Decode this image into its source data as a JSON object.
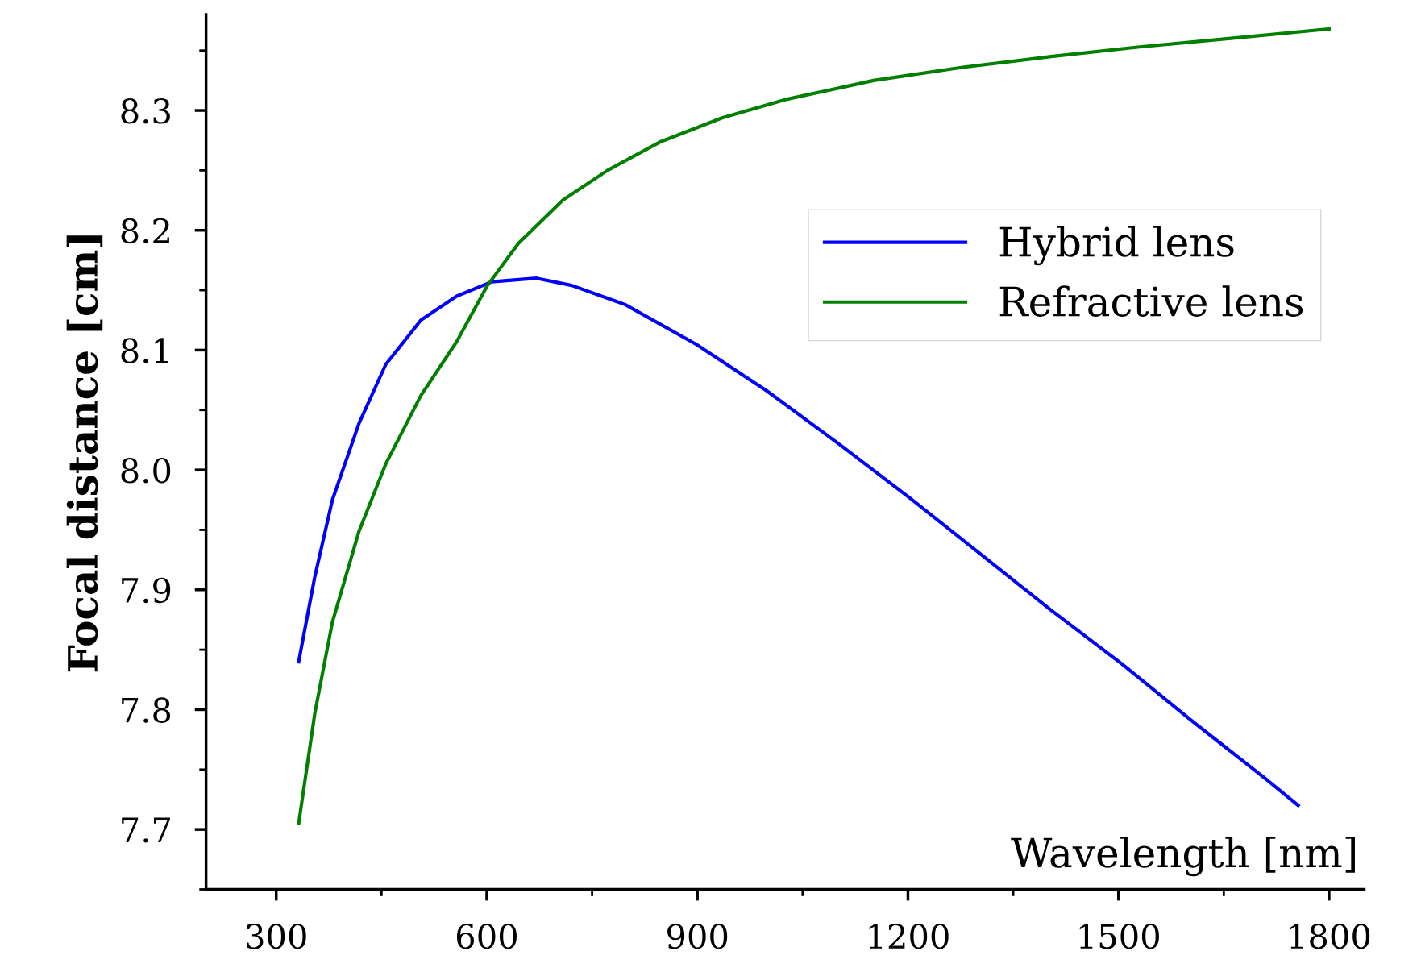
{
  "chart_data": {
    "type": "line",
    "xlabel": "Wavelength [nm]",
    "ylabel": "Focal distance [cm]",
    "xlim": [
      200,
      1850
    ],
    "xticks": [
      300,
      600,
      900,
      1200,
      1500,
      1800
    ],
    "ylim": [
      7.65,
      8.38
    ],
    "yticks": [
      7.7,
      7.8,
      7.9,
      {
        "value": 8.0,
        "label": "8.0"
      },
      8.1,
      8.2,
      8.3
    ],
    "grid": false,
    "legend": "top right",
    "marker": "none",
    "line_style": "solid",
    "series": [
      {
        "name": "Hybrid lens",
        "color": "#0000ff",
        "x": [
          332,
          355,
          380,
          418,
          456,
          506,
          557,
          607,
          671,
          721,
          797,
          898,
          999,
          1101,
          1202,
          1303,
          1404,
          1505,
          1606,
          1708,
          1756
        ],
        "values": [
          7.84,
          7.911,
          7.975,
          8.039,
          8.088,
          8.125,
          8.145,
          8.157,
          8.16,
          8.154,
          8.138,
          8.105,
          8.066,
          8.022,
          7.977,
          7.93,
          7.883,
          7.838,
          7.79,
          7.743,
          7.72
        ]
      },
      {
        "name": "Refractive lens",
        "color": "#007f00",
        "x": [
          332,
          355,
          380,
          418,
          456,
          506,
          557,
          601,
          645,
          708,
          772,
          848,
          936,
          1025,
          1151,
          1278,
          1404,
          1530,
          1657,
          1800
        ],
        "values": [
          7.705,
          7.797,
          7.873,
          7.949,
          8.005,
          8.062,
          8.107,
          8.154,
          8.189,
          8.225,
          8.25,
          8.274,
          8.294,
          8.309,
          8.325,
          8.336,
          8.345,
          8.353,
          8.36,
          8.368
        ]
      }
    ]
  }
}
